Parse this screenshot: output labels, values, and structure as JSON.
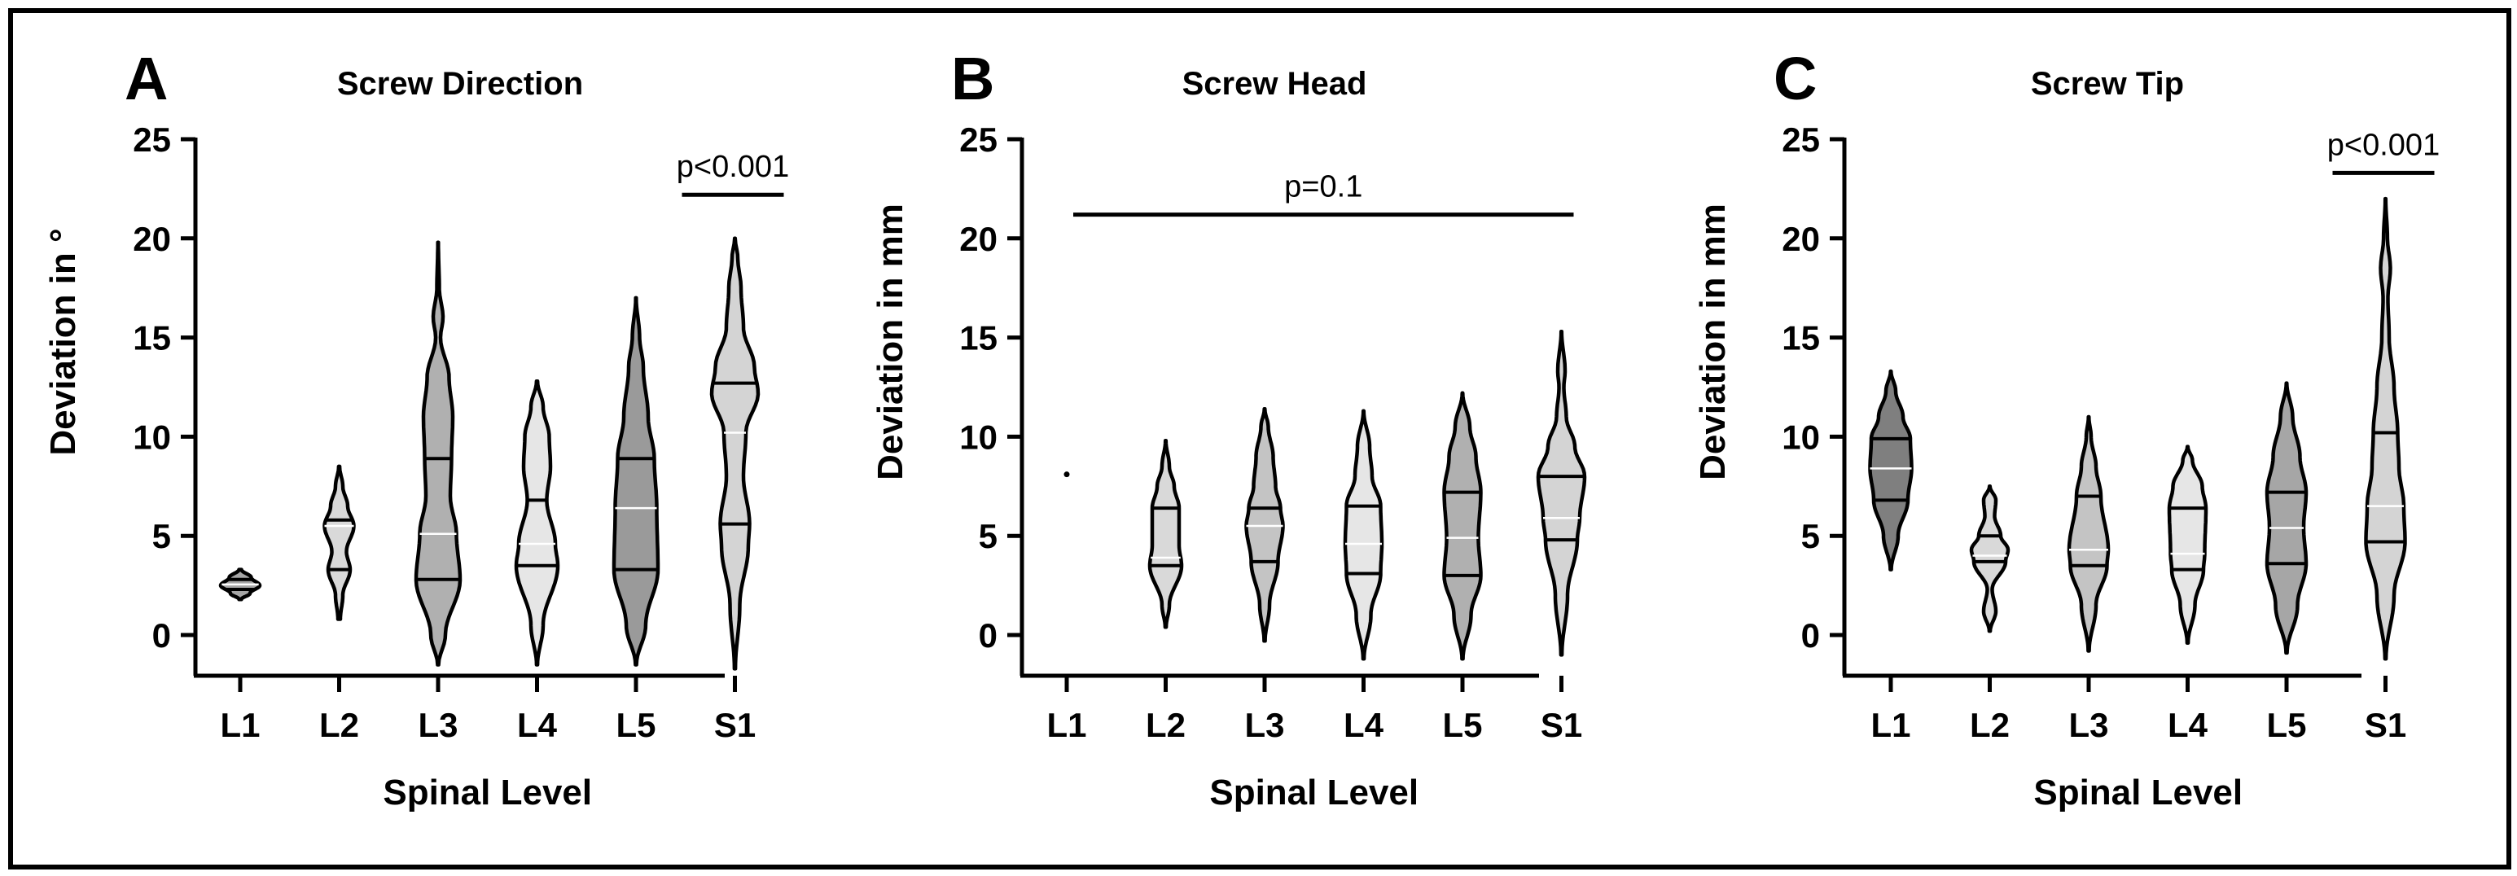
{
  "chart_data": [
    {
      "type": "violin",
      "panel_letter": "A",
      "title": "Screw Direction",
      "xlabel": "Spinal Level",
      "ylabel": "Deviation in °",
      "categories": [
        "L1",
        "L2",
        "L3",
        "L4",
        "L5",
        "S1"
      ],
      "ylim": [
        0,
        25
      ],
      "yticks": [
        "0",
        "5",
        "10",
        "15",
        "20",
        "25"
      ],
      "annotation": {
        "text": "p<0.001",
        "from": "S1",
        "to": "S1",
        "y": 22.2
      },
      "violins": [
        {
          "category": "L1",
          "min": 1.8,
          "max": 3.3,
          "q1": 2.3,
          "median": 2.55,
          "q3": 2.8,
          "color": "#a6a6a6",
          "density": [
            [
              1.8,
              0.05
            ],
            [
              2.1,
              0.4
            ],
            [
              2.5,
              0.8
            ],
            [
              2.9,
              0.45
            ],
            [
              3.3,
              0.05
            ]
          ]
        },
        {
          "category": "L2",
          "min": 0.8,
          "max": 8.5,
          "q1": 3.3,
          "median": 5.5,
          "q3": 5.8,
          "color": "#d9d9d9",
          "density": [
            [
              0.8,
              0.05
            ],
            [
              2.0,
              0.15
            ],
            [
              3.3,
              0.45
            ],
            [
              4.2,
              0.3
            ],
            [
              5.5,
              0.6
            ],
            [
              6.5,
              0.35
            ],
            [
              7.5,
              0.15
            ],
            [
              8.5,
              0.02
            ]
          ]
        },
        {
          "category": "L3",
          "min": -1.5,
          "max": 19.8,
          "q1": 2.8,
          "median": 5.1,
          "q3": 8.9,
          "color": "#b0b0b0",
          "density": [
            [
              -1.5,
              0.02
            ],
            [
              0,
              0.3
            ],
            [
              2.8,
              0.9
            ],
            [
              5.1,
              0.75
            ],
            [
              7,
              0.5
            ],
            [
              8.9,
              0.55
            ],
            [
              11,
              0.6
            ],
            [
              13,
              0.45
            ],
            [
              15,
              0.1
            ],
            [
              16,
              0.2
            ],
            [
              17.5,
              0.05
            ],
            [
              19.8,
              0.01
            ]
          ]
        },
        {
          "category": "L4",
          "min": -1.5,
          "max": 12.8,
          "q1": 3.5,
          "median": 4.6,
          "q3": 6.8,
          "color": "#e6e6e6",
          "density": [
            [
              -1.5,
              0.02
            ],
            [
              0.5,
              0.25
            ],
            [
              3.5,
              0.85
            ],
            [
              4.6,
              0.75
            ],
            [
              6.8,
              0.4
            ],
            [
              8.5,
              0.55
            ],
            [
              10,
              0.5
            ],
            [
              11.5,
              0.25
            ],
            [
              12.8,
              0.02
            ]
          ]
        },
        {
          "category": "L5",
          "min": -1.5,
          "max": 17.0,
          "q1": 3.3,
          "median": 6.4,
          "q3": 8.9,
          "color": "#9a9a9a",
          "density": [
            [
              -1.5,
              0.02
            ],
            [
              0.5,
              0.4
            ],
            [
              3.3,
              0.9
            ],
            [
              6.4,
              0.85
            ],
            [
              8.9,
              0.75
            ],
            [
              11,
              0.5
            ],
            [
              13.5,
              0.3
            ],
            [
              15,
              0.15
            ],
            [
              17,
              0.01
            ]
          ]
        },
        {
          "category": "S1",
          "min": -1.7,
          "max": 20.0,
          "q1": 5.6,
          "median": 10.2,
          "q3": 12.7,
          "color": "#d4d4d4",
          "density": [
            [
              -1.7,
              0.02
            ],
            [
              1.5,
              0.2
            ],
            [
              4.5,
              0.55
            ],
            [
              5.6,
              0.6
            ],
            [
              8,
              0.35
            ],
            [
              10.2,
              0.45
            ],
            [
              12.2,
              0.95
            ],
            [
              13.5,
              0.8
            ],
            [
              15.5,
              0.35
            ],
            [
              17.5,
              0.25
            ],
            [
              19,
              0.12
            ],
            [
              20,
              0.01
            ]
          ]
        }
      ]
    },
    {
      "type": "violin",
      "panel_letter": "B",
      "title": "Screw Head",
      "xlabel": "Spinal Level",
      "ylabel": "Deviation in mm",
      "categories": [
        "L1",
        "L2",
        "L3",
        "L4",
        "L5",
        "S1"
      ],
      "ylim": [
        0,
        25
      ],
      "yticks": [
        "0",
        "5",
        "10",
        "15",
        "20",
        "25"
      ],
      "annotation": {
        "text": "p=0.1",
        "from": "L1",
        "to": "S1",
        "y": 21.2
      },
      "violins": [
        {
          "category": "L1",
          "point": 8.1,
          "color": "#000000"
        },
        {
          "category": "L2",
          "min": 0.4,
          "max": 9.8,
          "q1": 3.5,
          "median": 3.9,
          "q3": 6.4,
          "color": "#d9d9d9",
          "density": [
            [
              0.4,
              0.02
            ],
            [
              1.5,
              0.15
            ],
            [
              3.5,
              0.65
            ],
            [
              4.5,
              0.55
            ],
            [
              6.4,
              0.55
            ],
            [
              7.5,
              0.35
            ],
            [
              8.5,
              0.15
            ],
            [
              9.8,
              0.01
            ]
          ]
        },
        {
          "category": "L3",
          "min": -0.3,
          "max": 11.4,
          "q1": 3.7,
          "median": 5.5,
          "q3": 6.4,
          "color": "#c4c4c4",
          "density": [
            [
              -0.3,
              0.02
            ],
            [
              1.5,
              0.2
            ],
            [
              3.7,
              0.55
            ],
            [
              5.5,
              0.75
            ],
            [
              6.4,
              0.65
            ],
            [
              7.5,
              0.45
            ],
            [
              9,
              0.35
            ],
            [
              10.5,
              0.15
            ],
            [
              11.4,
              0.01
            ]
          ]
        },
        {
          "category": "L4",
          "min": -1.2,
          "max": 11.3,
          "q1": 3.1,
          "median": 4.6,
          "q3": 6.5,
          "color": "#e6e6e6",
          "density": [
            [
              -1.2,
              0.02
            ],
            [
              1,
              0.3
            ],
            [
              3.1,
              0.7
            ],
            [
              4.6,
              0.75
            ],
            [
              6.5,
              0.7
            ],
            [
              8,
              0.35
            ],
            [
              9.5,
              0.25
            ],
            [
              11.3,
              0.01
            ]
          ]
        },
        {
          "category": "L5",
          "min": -1.2,
          "max": 12.2,
          "q1": 3.0,
          "median": 4.9,
          "q3": 7.2,
          "color": "#b0b0b0",
          "density": [
            [
              -1.2,
              0.02
            ],
            [
              1,
              0.35
            ],
            [
              3,
              0.75
            ],
            [
              4.9,
              0.65
            ],
            [
              7.2,
              0.75
            ],
            [
              9,
              0.55
            ],
            [
              10.5,
              0.3
            ],
            [
              12.2,
              0.01
            ]
          ]
        },
        {
          "category": "S1",
          "min": -1.0,
          "max": 15.3,
          "q1": 4.8,
          "median": 5.9,
          "q3": 8.0,
          "color": "#d4d4d4",
          "density": [
            [
              -1,
              0.02
            ],
            [
              2,
              0.25
            ],
            [
              4.8,
              0.65
            ],
            [
              5.9,
              0.75
            ],
            [
              8,
              0.95
            ],
            [
              9.5,
              0.55
            ],
            [
              11,
              0.2
            ],
            [
              12.5,
              0.1
            ],
            [
              13.3,
              0.15
            ],
            [
              15.3,
              0.01
            ]
          ]
        }
      ]
    },
    {
      "type": "violin",
      "panel_letter": "C",
      "title": "Screw Tip",
      "xlabel": "Spinal Level",
      "ylabel": "Deviation in mm",
      "categories": [
        "L1",
        "L2",
        "L3",
        "L4",
        "L5",
        "S1"
      ],
      "ylim": [
        0,
        25
      ],
      "yticks": [
        "0",
        "5",
        "10",
        "15",
        "20",
        "25"
      ],
      "annotation": {
        "text": "p<0.001",
        "from": "S1",
        "to": "S1",
        "y": 23.3
      },
      "violins": [
        {
          "category": "L1",
          "min": 3.3,
          "max": 13.3,
          "q1": 6.8,
          "median": 8.4,
          "q3": 9.9,
          "color": "#7f7f7f",
          "density": [
            [
              3.3,
              0.02
            ],
            [
              5,
              0.3
            ],
            [
              6.8,
              0.7
            ],
            [
              8.4,
              0.85
            ],
            [
              9.9,
              0.8
            ],
            [
              11,
              0.5
            ],
            [
              12.3,
              0.2
            ],
            [
              13.3,
              0.01
            ]
          ]
        },
        {
          "category": "L2",
          "min": 0.2,
          "max": 7.5,
          "q1": 3.7,
          "median": 4.0,
          "q3": 5.0,
          "color": "#d9d9d9",
          "density": [
            [
              0.2,
              0.02
            ],
            [
              1.2,
              0.25
            ],
            [
              2.3,
              0.1
            ],
            [
              3.7,
              0.65
            ],
            [
              4.3,
              0.75
            ],
            [
              5,
              0.45
            ],
            [
              6,
              0.2
            ],
            [
              6.8,
              0.25
            ],
            [
              7.5,
              0.01
            ]
          ]
        },
        {
          "category": "L3",
          "min": -0.8,
          "max": 11.0,
          "q1": 3.5,
          "median": 4.3,
          "q3": 7.0,
          "color": "#c4c4c4",
          "density": [
            [
              -0.8,
              0.02
            ],
            [
              1.5,
              0.3
            ],
            [
              3.5,
              0.75
            ],
            [
              4.3,
              0.8
            ],
            [
              7,
              0.5
            ],
            [
              8.5,
              0.3
            ],
            [
              10,
              0.1
            ],
            [
              11,
              0.01
            ]
          ]
        },
        {
          "category": "L4",
          "min": -0.4,
          "max": 9.5,
          "q1": 3.3,
          "median": 4.1,
          "q3": 6.4,
          "color": "#e6e6e6",
          "density": [
            [
              -0.4,
              0.02
            ],
            [
              1.5,
              0.3
            ],
            [
              3.3,
              0.65
            ],
            [
              4.1,
              0.7
            ],
            [
              6.4,
              0.75
            ],
            [
              7.5,
              0.6
            ],
            [
              8.8,
              0.2
            ],
            [
              9.5,
              0.01
            ]
          ]
        },
        {
          "category": "L5",
          "min": -0.9,
          "max": 12.7,
          "q1": 3.6,
          "median": 5.4,
          "q3": 7.2,
          "color": "#a6a6a6",
          "density": [
            [
              -0.9,
              0.02
            ],
            [
              1.5,
              0.45
            ],
            [
              3.6,
              0.8
            ],
            [
              5.4,
              0.7
            ],
            [
              7.2,
              0.8
            ],
            [
              9,
              0.55
            ],
            [
              11,
              0.25
            ],
            [
              12.7,
              0.01
            ]
          ]
        },
        {
          "category": "S1",
          "min": -1.2,
          "max": 22.0,
          "q1": 4.7,
          "median": 6.5,
          "q3": 10.2,
          "color": "#d4d4d4",
          "density": [
            [
              -1.2,
              0.02
            ],
            [
              2,
              0.35
            ],
            [
              4.7,
              0.8
            ],
            [
              6.5,
              0.75
            ],
            [
              8.5,
              0.55
            ],
            [
              10.2,
              0.5
            ],
            [
              12.5,
              0.35
            ],
            [
              15,
              0.15
            ],
            [
              17,
              0.1
            ],
            [
              18.5,
              0.2
            ],
            [
              20,
              0.08
            ],
            [
              22,
              0.01
            ]
          ]
        }
      ]
    }
  ]
}
